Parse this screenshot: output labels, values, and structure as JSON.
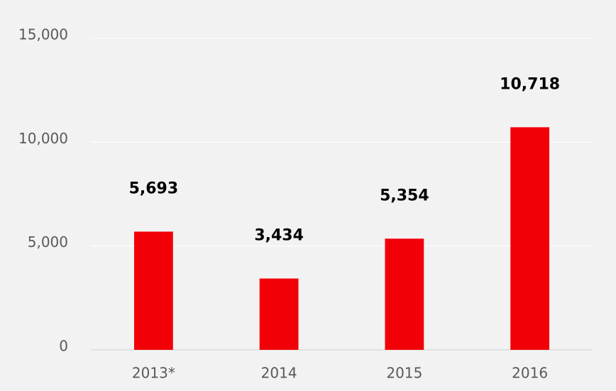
{
  "chart_data": {
    "type": "bar",
    "categories": [
      "2013*",
      "2014",
      "2015",
      "2016"
    ],
    "values": [
      5693,
      3434,
      5354,
      10718
    ],
    "value_labels": [
      "5,693",
      "3,434",
      "5,354",
      "10,718"
    ],
    "color": "#f20008",
    "ylim": [
      0,
      15000
    ],
    "yticks": [
      0,
      {
        "value": 5000,
        "label": "5,000"
      },
      {
        "value": 10000,
        "label": "10,000"
      },
      {
        "value": 15000,
        "label": "15,000"
      }
    ],
    "grid": true
  }
}
